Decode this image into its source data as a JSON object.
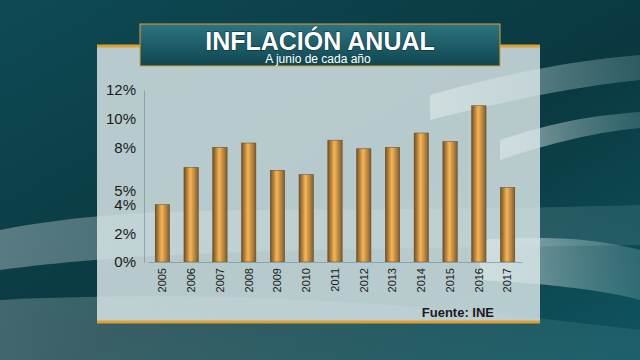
{
  "chart_data": {
    "type": "bar",
    "title": "INFLACIÓN ANUAL",
    "subtitle": "A junio de cada año",
    "source": "Fuente: INE",
    "categories": [
      "2005",
      "2006",
      "2007",
      "2008",
      "2009",
      "2010",
      "2011",
      "2012",
      "2013",
      "2014",
      "2015",
      "2016",
      "2017"
    ],
    "values": [
      4.0,
      6.6,
      8.0,
      8.3,
      6.4,
      6.1,
      8.5,
      7.9,
      8.0,
      9.0,
      8.4,
      10.9,
      5.2
    ],
    "color": "#a87a3a",
    "ylim": [
      0,
      12
    ],
    "yticks": [
      {
        "value": 0,
        "label": "0%"
      },
      {
        "value": 2,
        "label": "2%"
      },
      {
        "value": 4,
        "label": "4%"
      },
      {
        "value": 5,
        "label": "5%"
      },
      {
        "value": 8,
        "label": "8%"
      },
      {
        "value": 10,
        "label": "10%"
      },
      {
        "value": 12,
        "label": "12%"
      }
    ],
    "grid": false
  }
}
